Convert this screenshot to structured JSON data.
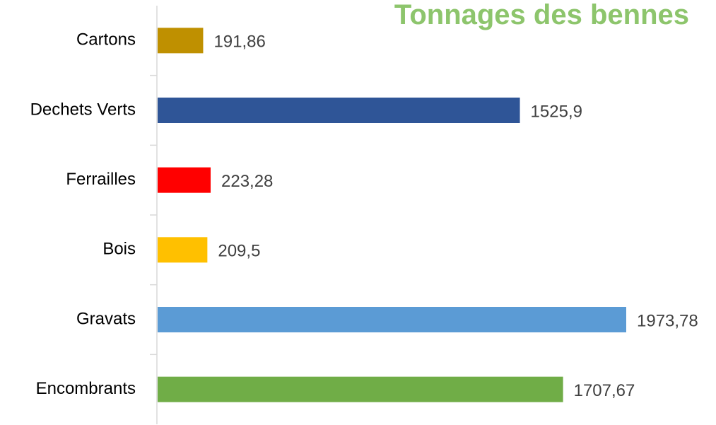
{
  "chart_data": {
    "type": "hbar",
    "title": "Tonnages des bennes",
    "categories": [
      "Cartons",
      "Dechets Verts",
      "Ferrailles",
      "Bois",
      "Gravats",
      "Encombrants"
    ],
    "values": [
      191.86,
      1525.9,
      223.28,
      209.5,
      1973.78,
      1707.67
    ],
    "value_labels": [
      "191,86",
      "1525,9",
      "223,28",
      "209,5",
      "1973,78",
      "1707,67"
    ],
    "colors": [
      "#bf9000",
      "#2f5597",
      "#ff0000",
      "#ffc000",
      "#5b9bd5",
      "#70ad47"
    ]
  }
}
